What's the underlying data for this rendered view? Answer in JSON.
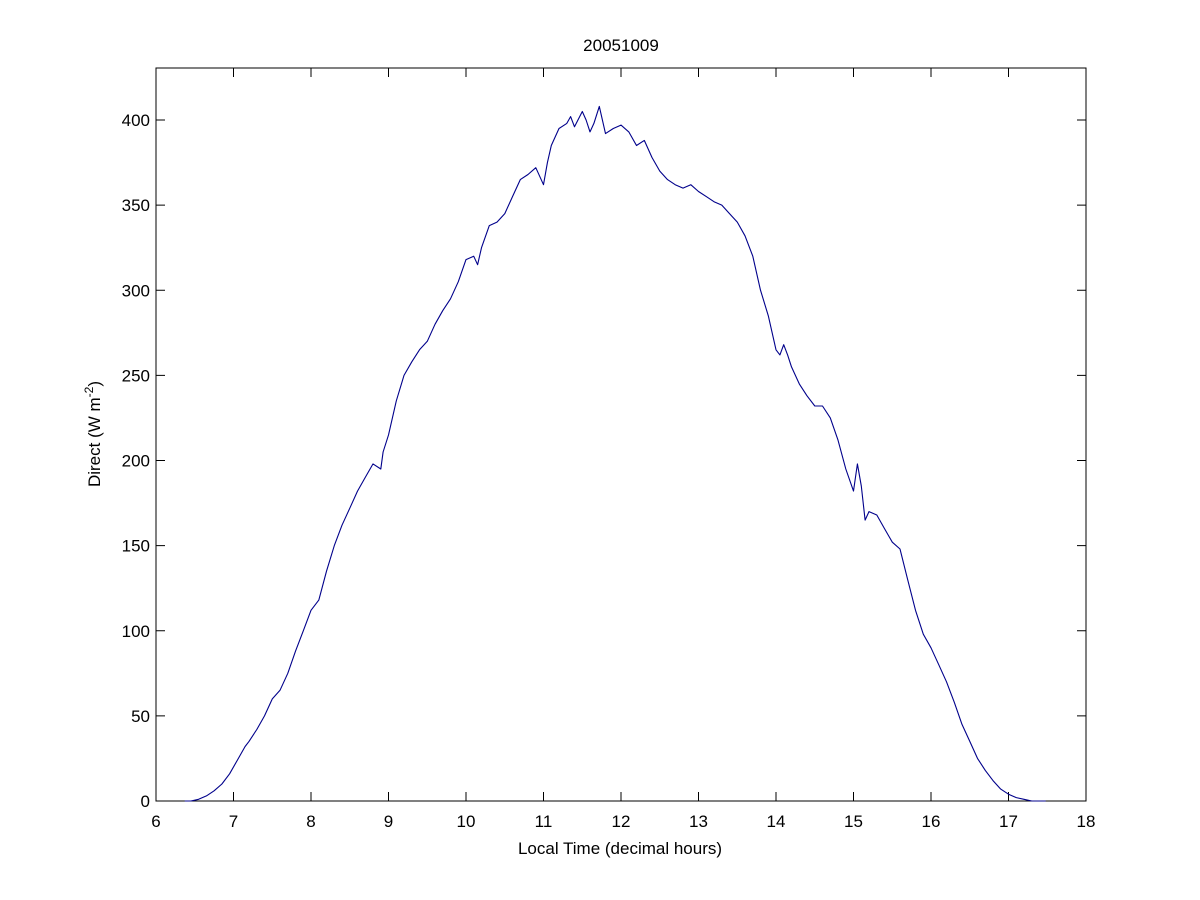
{
  "chart_data": {
    "type": "line",
    "title": "20051009",
    "xlabel": "Local Time (decimal hours)",
    "ylabel": {
      "prefix": "Direct (W m",
      "superscript": "-2",
      "suffix": ")"
    },
    "xlim": [
      6,
      18
    ],
    "ylim": [
      0,
      420
    ],
    "xticks": [
      6,
      7,
      8,
      9,
      10,
      11,
      12,
      13,
      14,
      15,
      16,
      17,
      18
    ],
    "yticks": [
      0,
      50,
      100,
      150,
      200,
      250,
      300,
      350,
      400
    ],
    "grid": false,
    "legend": "none",
    "series": [
      {
        "color": "#00008b",
        "x": [
          6.37,
          6.45,
          6.55,
          6.65,
          6.75,
          6.85,
          6.95,
          7.05,
          7.15,
          7.2,
          7.3,
          7.4,
          7.5,
          7.6,
          7.7,
          7.8,
          7.9,
          8.0,
          8.1,
          8.2,
          8.3,
          8.4,
          8.5,
          8.6,
          8.7,
          8.8,
          8.9,
          8.93,
          9.0,
          9.1,
          9.2,
          9.3,
          9.4,
          9.5,
          9.6,
          9.7,
          9.8,
          9.9,
          10.0,
          10.1,
          10.15,
          10.2,
          10.3,
          10.4,
          10.5,
          10.6,
          10.7,
          10.8,
          10.9,
          11.0,
          11.05,
          11.1,
          11.2,
          11.3,
          11.35,
          11.4,
          11.5,
          11.55,
          11.6,
          11.65,
          11.72,
          11.8,
          11.9,
          12.0,
          12.1,
          12.2,
          12.3,
          12.4,
          12.5,
          12.6,
          12.7,
          12.8,
          12.9,
          13.0,
          13.1,
          13.2,
          13.3,
          13.4,
          13.5,
          13.6,
          13.7,
          13.8,
          13.9,
          14.0,
          14.05,
          14.1,
          14.15,
          14.2,
          14.3,
          14.4,
          14.5,
          14.6,
          14.7,
          14.8,
          14.9,
          15.0,
          15.05,
          15.1,
          15.15,
          15.2,
          15.3,
          15.4,
          15.5,
          15.6,
          15.7,
          15.8,
          15.9,
          16.0,
          16.1,
          16.2,
          16.3,
          16.4,
          16.5,
          16.6,
          16.7,
          16.8,
          16.9,
          17.0,
          17.1,
          17.2,
          17.3,
          17.4,
          17.48
        ],
        "y": [
          0,
          0,
          1,
          3,
          6,
          10,
          16,
          24,
          32,
          35,
          42,
          50,
          60,
          65,
          75,
          88,
          100,
          112,
          118,
          135,
          150,
          162,
          172,
          182,
          190,
          198,
          195,
          205,
          215,
          235,
          250,
          258,
          265,
          270,
          280,
          288,
          295,
          305,
          318,
          320,
          315,
          325,
          338,
          340,
          345,
          355,
          365,
          368,
          372,
          362,
          375,
          385,
          395,
          398,
          402,
          396,
          405,
          400,
          393,
          398,
          408,
          392,
          395,
          397,
          393,
          385,
          388,
          378,
          370,
          365,
          362,
          360,
          362,
          358,
          355,
          352,
          350,
          345,
          340,
          332,
          320,
          300,
          285,
          265,
          262,
          268,
          262,
          255,
          245,
          238,
          232,
          232,
          225,
          212,
          195,
          182,
          198,
          185,
          165,
          170,
          168,
          160,
          152,
          148,
          130,
          112,
          98,
          90,
          80,
          70,
          58,
          45,
          35,
          25,
          18,
          12,
          7,
          4,
          2,
          1,
          0,
          0,
          0
        ]
      }
    ]
  }
}
